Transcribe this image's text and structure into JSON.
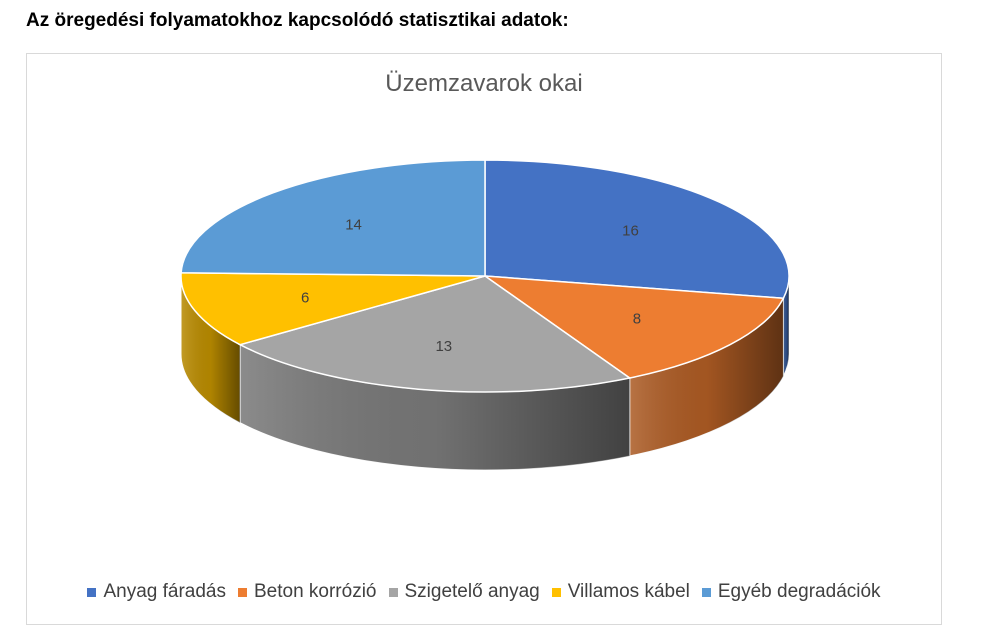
{
  "heading": "Az öregedési folyamatokhoz kapcsolódó statisztikai adatok:",
  "chart_data": {
    "type": "pie",
    "title": "Üzemzavarok okai",
    "categories": [
      "Anyag fáradás",
      "Beton korrózió",
      "Szigetelő anyag",
      "Villamos kábel",
      "Egyéb degradációk"
    ],
    "values": [
      16,
      8,
      13,
      6,
      14
    ],
    "colors": [
      "#4472c4",
      "#ed7d31",
      "#a5a5a5",
      "#ffc000",
      "#5b9bd5"
    ],
    "legend_position": "bottom",
    "style": "3d"
  }
}
